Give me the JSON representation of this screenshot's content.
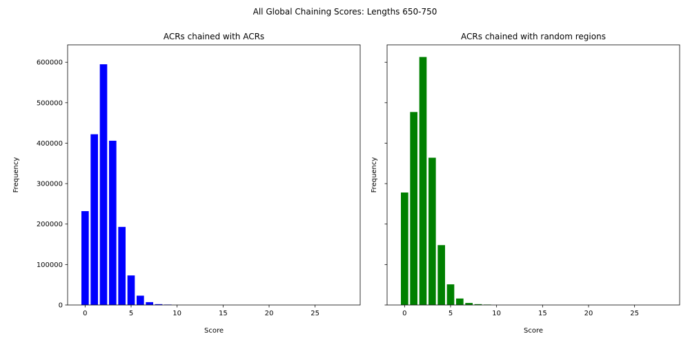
{
  "suptitle": "All Global Chaining Scores: Lengths 650-750",
  "chart_data": [
    {
      "type": "bar",
      "title": "ACRs chained with ACRs",
      "xlabel": "Score",
      "ylabel": "Frequency",
      "color": "#0000ff",
      "x": [
        0,
        1,
        2,
        3,
        4,
        5,
        6,
        7,
        8,
        9,
        10,
        11,
        12,
        13,
        14,
        15,
        16,
        17,
        18,
        19,
        20,
        21,
        22,
        23,
        24,
        25,
        26,
        27,
        28
      ],
      "values": [
        232000,
        422000,
        595000,
        406000,
        193000,
        73000,
        23000,
        7000,
        2000,
        1000,
        0,
        0,
        0,
        0,
        0,
        0,
        0,
        0,
        0,
        0,
        0,
        0,
        0,
        0,
        0,
        0,
        0,
        0,
        0
      ],
      "xlim": [
        -1.9,
        29.9
      ],
      "ylim": [
        0,
        643000
      ],
      "xticks": [
        0,
        5,
        10,
        15,
        20,
        25
      ],
      "yticks": [
        0,
        100000,
        200000,
        300000,
        400000,
        500000,
        600000
      ],
      "show_yticklabels": true
    },
    {
      "type": "bar",
      "title": "ACRs chained with random regions",
      "xlabel": "Score",
      "ylabel": "Frequency",
      "color": "#008000",
      "x": [
        0,
        1,
        2,
        3,
        4,
        5,
        6,
        7,
        8,
        9,
        10,
        11,
        12,
        13,
        14,
        15,
        16,
        17,
        18,
        19,
        20,
        21,
        22,
        23,
        24,
        25,
        26,
        27,
        28
      ],
      "values": [
        278000,
        477000,
        613000,
        364000,
        148000,
        51000,
        16000,
        5000,
        2000,
        1000,
        0,
        0,
        0,
        0,
        0,
        0,
        0,
        0,
        0,
        0,
        0,
        0,
        0,
        0,
        0,
        0,
        0,
        0,
        0
      ],
      "xlim": [
        -1.9,
        29.9
      ],
      "ylim": [
        0,
        643000
      ],
      "xticks": [
        0,
        5,
        10,
        15,
        20,
        25
      ],
      "yticks": [
        0,
        100000,
        200000,
        300000,
        400000,
        500000,
        600000
      ],
      "show_yticklabels": false
    }
  ]
}
